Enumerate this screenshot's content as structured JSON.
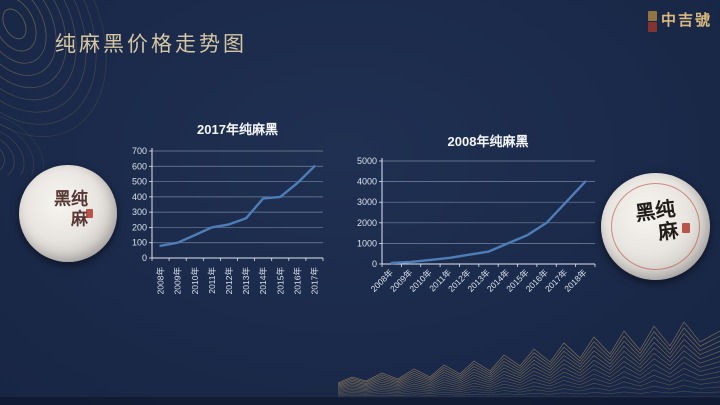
{
  "page": {
    "title": "纯麻黑价格走势图",
    "brand": "中吉號"
  },
  "tea_cakes": {
    "left_label": "纯麻黑",
    "right_label": "纯麻黑"
  },
  "colors": {
    "background": "#1b2a4a",
    "title_gold": "#d5c6a3",
    "brand_gold": "#d9b97c",
    "line_blue": "#4e7eb7",
    "grid": "rgba(190,205,225,0.55)",
    "axis": "#dfe7f1",
    "chart_text": "#d9e1ec",
    "mountain_gold": "#a99060",
    "seal_red": "#b03a30"
  },
  "chart_data": [
    {
      "type": "line",
      "title": "2017年纯麻黑",
      "categories": [
        "2008年",
        "2009年",
        "2010年",
        "2011年",
        "2012年",
        "2013年",
        "2014年",
        "2015年",
        "2016年",
        "2017年"
      ],
      "values": [
        80,
        100,
        150,
        200,
        220,
        260,
        390,
        400,
        490,
        600
      ],
      "ylim": [
        0,
        700
      ],
      "ytick_step": 100,
      "xlabel": "",
      "ylabel": "",
      "grid": true,
      "legend": false,
      "x_label_rotation": -90
    },
    {
      "type": "line",
      "title": "2008年纯麻黑",
      "categories": [
        "2008年",
        "2009年",
        "2010年",
        "2011年",
        "2012年",
        "2013年",
        "2014年",
        "2015年",
        "2016年",
        "2017年",
        "2018年"
      ],
      "values": [
        50,
        100,
        200,
        300,
        450,
        600,
        1000,
        1400,
        2000,
        3000,
        4000
      ],
      "ylim": [
        0,
        5000
      ],
      "ytick_step": 1000,
      "xlabel": "",
      "ylabel": "",
      "grid": true,
      "legend": false,
      "x_label_rotation": -45
    }
  ]
}
